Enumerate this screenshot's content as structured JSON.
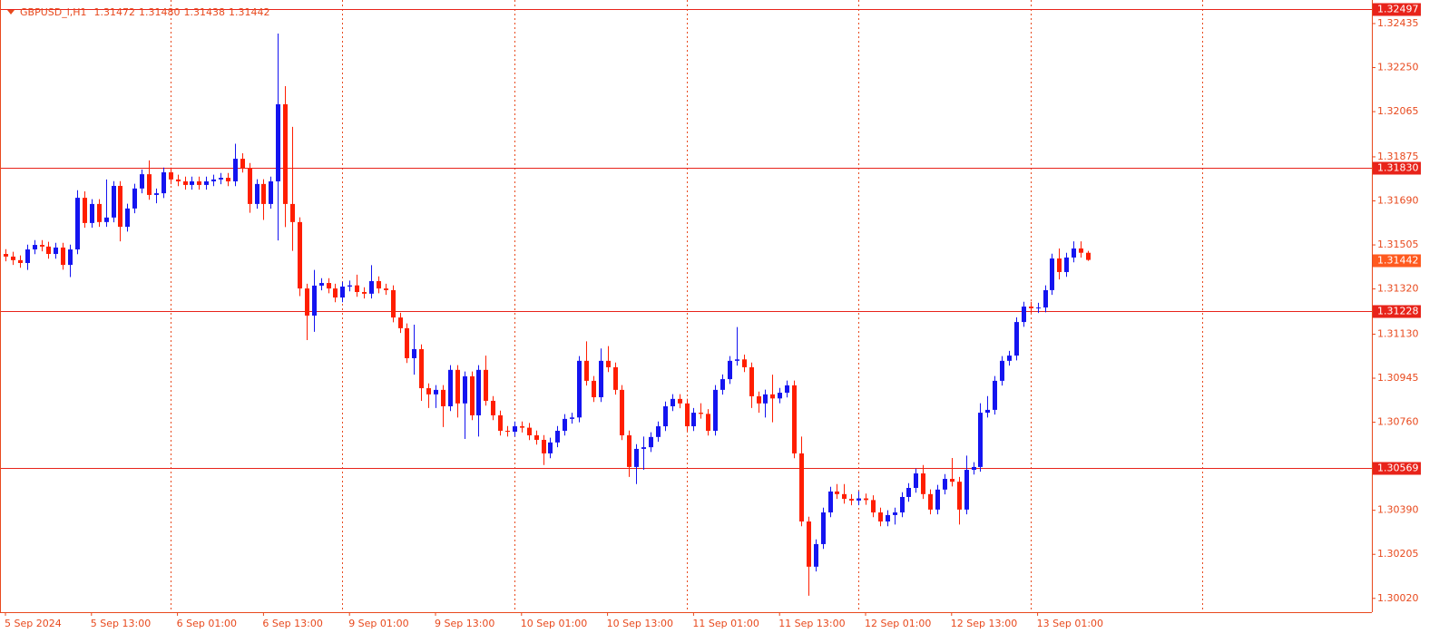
{
  "chart_data": {
    "type": "candlestick",
    "symbol": "GBPUSD_i,H1",
    "last_bar_labels": [
      "1.31472",
      "1.31480",
      "1.31438",
      "1.31442"
    ],
    "up_color": "#1414f0",
    "down_color": "#ff1e00",
    "level_color": "#e8231a",
    "categories": [
      "5 Sep 2024",
      null,
      null,
      null,
      null,
      null,
      null,
      null,
      null,
      null,
      null,
      null,
      "5 Sep 13:00",
      null,
      null,
      null,
      null,
      null,
      null,
      null,
      null,
      null,
      null,
      null,
      "6 Sep 01:00",
      null,
      null,
      null,
      null,
      null,
      null,
      null,
      null,
      null,
      null,
      null,
      "6 Sep 13:00",
      null,
      null,
      null,
      null,
      null,
      null,
      null,
      null,
      null,
      null,
      null,
      "9 Sep 01:00",
      null,
      null,
      null,
      null,
      null,
      null,
      null,
      null,
      null,
      null,
      null,
      "9 Sep 13:00",
      null,
      null,
      null,
      null,
      null,
      null,
      null,
      null,
      null,
      null,
      null,
      "10 Sep 01:00",
      null,
      null,
      null,
      null,
      null,
      null,
      null,
      null,
      null,
      null,
      null,
      "10 Sep 13:00",
      null,
      null,
      null,
      null,
      null,
      null,
      null,
      null,
      null,
      null,
      null,
      "11 Sep 01:00",
      null,
      null,
      null,
      null,
      null,
      null,
      null,
      null,
      null,
      null,
      null,
      "11 Sep 13:00",
      null,
      null,
      null,
      null,
      null,
      null,
      null,
      null,
      null,
      null,
      null,
      "12 Sep 01:00",
      null,
      null,
      null,
      null,
      null,
      null,
      null,
      null,
      null,
      null,
      null,
      "12 Sep 13:00",
      null,
      null,
      null,
      null,
      null,
      null,
      null,
      null,
      null,
      null,
      null,
      "13 Sep 01:00",
      null,
      null,
      null,
      null,
      null,
      null,
      null
    ],
    "open": [
      1.31467,
      1.31456,
      1.31441,
      1.31429,
      1.31486,
      1.31505,
      1.31498,
      1.31467,
      1.31494,
      1.31421,
      1.31486,
      1.31703,
      1.31597,
      1.31677,
      1.31601,
      1.3162,
      1.31753,
      1.31581,
      1.31658,
      1.31742,
      1.31802,
      1.31715,
      1.31722,
      1.3181,
      1.3178,
      1.31772,
      1.31757,
      1.31772,
      1.31757,
      1.31772,
      1.3178,
      1.31787,
      1.31772,
      1.31867,
      1.31829,
      1.31677,
      1.31761,
      1.31677,
      1.31772,
      1.32096,
      1.31677,
      1.31601,
      1.31322,
      1.31208,
      1.31334,
      1.31345,
      1.31322,
      1.31284,
      1.3133,
      1.31335,
      1.31307,
      1.313,
      1.31353,
      1.31322,
      1.31315,
      1.312,
      1.31155,
      1.31029,
      1.31067,
      1.30903,
      1.30877,
      1.30896,
      1.30827,
      1.3098,
      1.30839,
      1.30953,
      1.30789,
      1.3098,
      1.3085,
      1.30789,
      1.30724,
      1.3072,
      1.30743,
      1.30737,
      1.30705,
      1.30686,
      1.30629,
      1.30675,
      1.30724,
      1.30774,
      1.3078,
      1.31018,
      1.30934,
      1.30865,
      1.31018,
      1.30991,
      1.30896,
      1.30705,
      1.30572,
      1.30648,
      1.30655,
      1.30698,
      1.30743,
      1.30827,
      1.30858,
      1.30839,
      1.30743,
      1.308,
      1.30795,
      1.30724,
      1.30896,
      1.30941,
      1.31018,
      1.31024,
      1.30991,
      1.30869,
      1.30839,
      1.30877,
      1.3086,
      1.30884,
      1.30915,
      1.30629,
      1.30343,
      1.30153,
      1.30248,
      1.30381,
      1.30469,
      1.30458,
      1.30438,
      1.30431,
      1.3044,
      1.30433,
      1.30381,
      1.30343,
      1.3037,
      1.30381,
      1.30446,
      1.30484,
      1.30545,
      1.30458,
      1.30393,
      1.30477,
      1.30522,
      1.3051,
      1.30393,
      1.3056,
      1.30572,
      1.308,
      1.30812,
      1.30934,
      1.31018,
      1.3104,
      1.31181,
      1.31246,
      1.31239,
      1.31242,
      1.31315,
      1.31448,
      1.31391,
      1.31452,
      1.3149,
      1.31472
    ],
    "high": [
      1.31487,
      1.31476,
      1.31461,
      1.31506,
      1.31525,
      1.31525,
      1.31518,
      1.31514,
      1.31514,
      1.31506,
      1.31735,
      1.3173,
      1.31697,
      1.31697,
      1.3178,
      1.31773,
      1.31773,
      1.31678,
      1.31762,
      1.31822,
      1.3186,
      1.31742,
      1.3183,
      1.3183,
      1.318,
      1.31792,
      1.31792,
      1.31792,
      1.31792,
      1.318,
      1.31807,
      1.31807,
      1.3193,
      1.3189,
      1.31849,
      1.31781,
      1.31781,
      1.31792,
      1.32393,
      1.32172,
      1.32001,
      1.31621,
      1.31342,
      1.314,
      1.31365,
      1.31365,
      1.31342,
      1.3135,
      1.31355,
      1.3138,
      1.31327,
      1.3142,
      1.31373,
      1.31342,
      1.31335,
      1.3122,
      1.31175,
      1.3117,
      1.31087,
      1.30923,
      1.30916,
      1.30916,
      1.31,
      1.31,
      1.30973,
      1.30973,
      1.31,
      1.3104,
      1.3087,
      1.30809,
      1.30744,
      1.30763,
      1.30763,
      1.30757,
      1.30725,
      1.30706,
      1.30695,
      1.30744,
      1.30794,
      1.308,
      1.31038,
      1.311,
      1.30954,
      1.3107,
      1.3108,
      1.31011,
      1.30916,
      1.30725,
      1.30668,
      1.307,
      1.30718,
      1.30763,
      1.30847,
      1.30878,
      1.30878,
      1.30859,
      1.3082,
      1.3084,
      1.30815,
      1.30916,
      1.30961,
      1.31038,
      1.3116,
      1.31044,
      1.31011,
      1.30889,
      1.30897,
      1.3096,
      1.30904,
      1.30935,
      1.30935,
      1.307,
      1.30363,
      1.30268,
      1.30401,
      1.30489,
      1.305,
      1.305,
      1.30458,
      1.3047,
      1.3046,
      1.30453,
      1.30401,
      1.3039,
      1.30401,
      1.30466,
      1.30504,
      1.30565,
      1.3058,
      1.30478,
      1.30497,
      1.30542,
      1.3061,
      1.3053,
      1.3062,
      1.30592,
      1.3084,
      1.3087,
      1.30954,
      1.31038,
      1.3106,
      1.31201,
      1.31266,
      1.31266,
      1.31262,
      1.31335,
      1.31468,
      1.3149,
      1.31472,
      1.3152,
      1.3152,
      1.3148
    ],
    "low": [
      1.31436,
      1.31421,
      1.31409,
      1.314,
      1.31466,
      1.31478,
      1.31447,
      1.31447,
      1.31401,
      1.3137,
      1.31466,
      1.31577,
      1.31577,
      1.31581,
      1.31581,
      1.316,
      1.3152,
      1.31561,
      1.31638,
      1.31722,
      1.31695,
      1.3168,
      1.31702,
      1.3176,
      1.31752,
      1.31737,
      1.31737,
      1.31737,
      1.31737,
      1.31752,
      1.3176,
      1.31752,
      1.31752,
      1.31809,
      1.3164,
      1.31657,
      1.3161,
      1.31657,
      1.31524,
      1.3158,
      1.3148,
      1.3129,
      1.31105,
      1.3114,
      1.31314,
      1.31302,
      1.31264,
      1.31264,
      1.3131,
      1.31287,
      1.3128,
      1.3128,
      1.31302,
      1.31295,
      1.3118,
      1.31135,
      1.31009,
      1.3096,
      1.3085,
      1.3082,
      1.3082,
      1.3074,
      1.30807,
      1.3078,
      1.3069,
      1.30769,
      1.307,
      1.3083,
      1.30769,
      1.30704,
      1.307,
      1.307,
      1.30717,
      1.30685,
      1.30666,
      1.3058,
      1.30609,
      1.30655,
      1.30704,
      1.30754,
      1.3076,
      1.30914,
      1.30845,
      1.30845,
      1.30971,
      1.30876,
      1.30685,
      1.3053,
      1.305,
      1.3056,
      1.30635,
      1.30678,
      1.30723,
      1.30807,
      1.30819,
      1.30723,
      1.30723,
      1.30775,
      1.30704,
      1.30704,
      1.30876,
      1.30921,
      1.30998,
      1.30971,
      1.3082,
      1.308,
      1.3078,
      1.3076,
      1.3084,
      1.30864,
      1.30609,
      1.30323,
      1.30031,
      1.30133,
      1.30228,
      1.30361,
      1.30438,
      1.30418,
      1.30411,
      1.30411,
      1.30413,
      1.30361,
      1.30323,
      1.30323,
      1.3033,
      1.30361,
      1.30426,
      1.30464,
      1.30438,
      1.30373,
      1.30373,
      1.30457,
      1.3049,
      1.3033,
      1.30373,
      1.3054,
      1.30552,
      1.3078,
      1.30792,
      1.30914,
      1.30998,
      1.3102,
      1.31161,
      1.31219,
      1.31219,
      1.31222,
      1.31295,
      1.3136,
      1.31371,
      1.31432,
      1.31452,
      1.31438
    ],
    "close": [
      1.31456,
      1.31441,
      1.31429,
      1.31486,
      1.31505,
      1.31498,
      1.31467,
      1.31494,
      1.31421,
      1.31486,
      1.31703,
      1.31597,
      1.31677,
      1.31601,
      1.3162,
      1.31753,
      1.31581,
      1.31658,
      1.31742,
      1.31802,
      1.31715,
      1.31722,
      1.3181,
      1.3178,
      1.31772,
      1.31757,
      1.31772,
      1.31757,
      1.31772,
      1.3178,
      1.31787,
      1.31772,
      1.31867,
      1.31829,
      1.31677,
      1.31761,
      1.31677,
      1.31772,
      1.32096,
      1.31677,
      1.31601,
      1.31322,
      1.31208,
      1.31334,
      1.31345,
      1.31322,
      1.31284,
      1.3133,
      1.31335,
      1.31307,
      1.313,
      1.31353,
      1.31322,
      1.31315,
      1.312,
      1.31155,
      1.31029,
      1.31067,
      1.30903,
      1.30877,
      1.30896,
      1.30827,
      1.3098,
      1.30839,
      1.30953,
      1.30789,
      1.3098,
      1.3085,
      1.30789,
      1.30724,
      1.3072,
      1.30743,
      1.30737,
      1.30705,
      1.30686,
      1.30629,
      1.30675,
      1.30724,
      1.30774,
      1.3078,
      1.31018,
      1.30934,
      1.30865,
      1.31018,
      1.30991,
      1.30896,
      1.30705,
      1.30572,
      1.30648,
      1.30655,
      1.30698,
      1.30743,
      1.30827,
      1.30858,
      1.30839,
      1.30743,
      1.308,
      1.30795,
      1.30724,
      1.30896,
      1.30941,
      1.31018,
      1.31024,
      1.30991,
      1.30869,
      1.30839,
      1.30877,
      1.3086,
      1.30884,
      1.30915,
      1.30629,
      1.30343,
      1.30153,
      1.30248,
      1.30381,
      1.30469,
      1.30458,
      1.30438,
      1.30431,
      1.3044,
      1.30433,
      1.30381,
      1.30343,
      1.3037,
      1.30381,
      1.30446,
      1.30484,
      1.30545,
      1.30458,
      1.30393,
      1.30477,
      1.30522,
      1.3051,
      1.30393,
      1.3056,
      1.30572,
      1.308,
      1.30812,
      1.30934,
      1.31018,
      1.3104,
      1.31181,
      1.31246,
      1.31239,
      1.31242,
      1.31315,
      1.31448,
      1.31391,
      1.31452,
      1.3149,
      1.31472,
      1.31442
    ],
    "ylim": [
      1.29962,
      1.32534
    ],
    "yticks": [
      1.32435,
      {
        "value": 1.3225,
        "label": "1.32250"
      },
      1.32065,
      1.31875,
      {
        "value": 1.3169,
        "label": "1.31690"
      },
      1.31505,
      {
        "value": 1.3132,
        "label": "1.31320"
      },
      {
        "value": 1.3113,
        "label": "1.31130"
      },
      1.30945,
      {
        "value": 1.3076,
        "label": "1.30760"
      },
      {
        "value": 1.3039,
        "label": "1.30390"
      },
      1.30205,
      {
        "value": 1.3002,
        "label": "1.30020"
      }
    ],
    "levels": [
      1.32497,
      {
        "value": 1.3183,
        "label": "1.31830"
      },
      1.31228,
      1.30569
    ]
  }
}
